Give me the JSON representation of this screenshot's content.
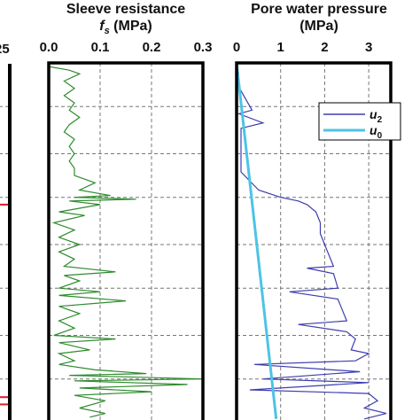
{
  "chart_data": [
    {
      "type": "line",
      "title": "",
      "xlabel": "",
      "note": "left panel, cropped; only a partial tick label is visible",
      "partial_tick_label": "25",
      "marker_color": "#e0182d",
      "marker_fraction_y": [
        0.39,
        0.92,
        0.94
      ],
      "grid_fraction_y": [
        0.12,
        0.25,
        0.37,
        0.5,
        0.62,
        0.75,
        0.87
      ]
    },
    {
      "type": "line",
      "title": "Sleeve resistance",
      "xlabel_symbol": "f",
      "xlabel_subscript": "s",
      "xlabel_unit": " (MPa)",
      "xlim": [
        0,
        0.3
      ],
      "ticks": [
        {
          "value": 0.0,
          "label": "0.0"
        },
        {
          "value": 0.1,
          "label": "0.1"
        },
        {
          "value": 0.2,
          "label": "0.2"
        },
        {
          "value": 0.3,
          "label": "0.3"
        }
      ],
      "depth_range": [
        0,
        1
      ],
      "grid": true,
      "series": [
        {
          "color": "#2e8b2e",
          "points": [
            [
              0.0,
              0.01
            ],
            [
              0.04,
              0.02
            ],
            [
              0.06,
              0.03
            ],
            [
              0.03,
              0.05
            ],
            [
              0.05,
              0.07
            ],
            [
              0.03,
              0.09
            ],
            [
              0.05,
              0.11
            ],
            [
              0.04,
              0.13
            ],
            [
              0.06,
              0.15
            ],
            [
              0.04,
              0.17
            ],
            [
              0.03,
              0.19
            ],
            [
              0.05,
              0.21
            ],
            [
              0.04,
              0.23
            ],
            [
              0.05,
              0.25
            ],
            [
              0.04,
              0.27
            ],
            [
              0.05,
              0.29
            ],
            [
              0.05,
              0.31
            ],
            [
              0.09,
              0.33
            ],
            [
              0.06,
              0.35
            ],
            [
              0.12,
              0.365
            ],
            [
              0.05,
              0.37
            ],
            [
              0.17,
              0.375
            ],
            [
              0.04,
              0.38
            ],
            [
              0.1,
              0.39
            ],
            [
              0.02,
              0.41
            ],
            [
              0.07,
              0.42
            ],
            [
              0.01,
              0.44
            ],
            [
              0.05,
              0.46
            ],
            [
              0.02,
              0.48
            ],
            [
              0.06,
              0.5
            ],
            [
              0.02,
              0.52
            ],
            [
              0.05,
              0.54
            ],
            [
              0.03,
              0.56
            ],
            [
              0.13,
              0.575
            ],
            [
              0.03,
              0.585
            ],
            [
              0.06,
              0.6
            ],
            [
              0.02,
              0.62
            ],
            [
              0.1,
              0.63
            ],
            [
              0.02,
              0.64
            ],
            [
              0.15,
              0.655
            ],
            [
              0.02,
              0.67
            ],
            [
              0.06,
              0.69
            ],
            [
              0.02,
              0.71
            ],
            [
              0.05,
              0.73
            ],
            [
              0.01,
              0.75
            ],
            [
              0.13,
              0.76
            ],
            [
              0.02,
              0.77
            ],
            [
              0.08,
              0.79
            ],
            [
              0.02,
              0.8
            ],
            [
              0.05,
              0.82
            ],
            [
              0.02,
              0.83
            ],
            [
              0.09,
              0.845
            ],
            [
              0.19,
              0.855
            ],
            [
              0.04,
              0.86
            ],
            [
              0.3,
              0.87
            ],
            [
              0.05,
              0.875
            ],
            [
              0.27,
              0.885
            ],
            [
              0.06,
              0.895
            ],
            [
              0.2,
              0.905
            ],
            [
              0.05,
              0.915
            ],
            [
              0.11,
              0.93
            ],
            [
              0.06,
              0.95
            ],
            [
              0.11,
              0.965
            ],
            [
              0.08,
              0.975
            ]
          ]
        }
      ]
    },
    {
      "type": "line",
      "title": "Pore water pressure",
      "xlabel": "(MPa)",
      "xlim": [
        0,
        3.5
      ],
      "ticks": [
        {
          "value": 0,
          "label": "0"
        },
        {
          "value": 1,
          "label": "1"
        },
        {
          "value": 2,
          "label": "2"
        },
        {
          "value": 3,
          "label": "3"
        }
      ],
      "depth_range": [
        0,
        1
      ],
      "grid": true,
      "legend_position": "top-right",
      "series": [
        {
          "name": "u",
          "subscript": "2",
          "color": "#3d3db0",
          "points": [
            [
              0.0,
              0.01
            ],
            [
              0.05,
              0.03
            ],
            [
              0.02,
              0.06
            ],
            [
              0.35,
              0.13
            ],
            [
              0.05,
              0.14
            ],
            [
              0.6,
              0.165
            ],
            [
              0.1,
              0.18
            ],
            [
              0.1,
              0.3
            ],
            [
              0.5,
              0.35
            ],
            [
              1.0,
              0.37
            ],
            [
              1.4,
              0.38
            ],
            [
              1.6,
              0.39
            ],
            [
              1.8,
              0.41
            ],
            [
              1.9,
              0.44
            ],
            [
              1.9,
              0.47
            ],
            [
              2.0,
              0.5
            ],
            [
              2.1,
              0.53
            ],
            [
              2.2,
              0.56
            ],
            [
              1.6,
              0.565
            ],
            [
              2.2,
              0.58
            ],
            [
              2.25,
              0.6
            ],
            [
              2.3,
              0.62
            ],
            [
              1.2,
              0.63
            ],
            [
              2.3,
              0.65
            ],
            [
              2.4,
              0.68
            ],
            [
              2.5,
              0.71
            ],
            [
              1.4,
              0.72
            ],
            [
              2.5,
              0.74
            ],
            [
              2.7,
              0.76
            ],
            [
              2.6,
              0.79
            ],
            [
              3.0,
              0.8
            ],
            [
              2.7,
              0.82
            ],
            [
              0.4,
              0.83
            ],
            [
              2.8,
              0.85
            ],
            [
              0.6,
              0.87
            ],
            [
              3.0,
              0.88
            ],
            [
              0.3,
              0.9
            ],
            [
              3.0,
              0.91
            ],
            [
              3.2,
              0.93
            ],
            [
              2.9,
              0.95
            ],
            [
              3.4,
              0.965
            ],
            [
              2.9,
              0.98
            ]
          ]
        },
        {
          "name": "u",
          "subscript": "0",
          "color": "#4dc3e6",
          "points": [
            [
              0.0,
              0.0
            ],
            [
              0.9,
              0.98
            ]
          ]
        }
      ]
    }
  ]
}
